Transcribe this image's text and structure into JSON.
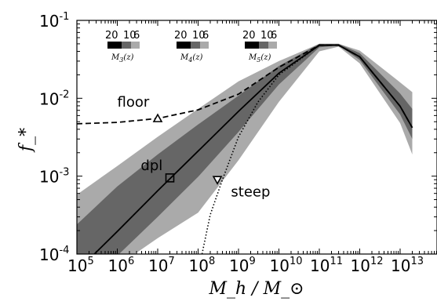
{
  "chart_data": {
    "type": "line",
    "title": "",
    "xlabel": "M_h / M_⊙",
    "ylabel": "f_*",
    "x_scale": "log",
    "y_scale": "log",
    "xlim": [
      100000,
      20000000000000
    ],
    "ylim": [
      0.0001,
      0.1
    ],
    "x_ticks": [
      {
        "mantissa": "10",
        "exp": "5",
        "value": 100000
      },
      {
        "mantissa": "10",
        "exp": "6",
        "value": 1000000
      },
      {
        "mantissa": "10",
        "exp": "7",
        "value": 10000000
      },
      {
        "mantissa": "10",
        "exp": "8",
        "value": 100000000
      },
      {
        "mantissa": "10",
        "exp": "9",
        "value": 1000000000
      },
      {
        "mantissa": "10",
        "exp": "10",
        "value": 10000000000
      },
      {
        "mantissa": "10",
        "exp": "11",
        "value": 100000000000
      },
      {
        "mantissa": "10",
        "exp": "12",
        "value": 1000000000000
      },
      {
        "mantissa": "10",
        "exp": "13",
        "value": 10000000000000
      }
    ],
    "y_ticks": [
      {
        "mantissa": "10",
        "exp": "-4",
        "value": 0.0001
      },
      {
        "mantissa": "10",
        "exp": "-3",
        "value": 0.001
      },
      {
        "mantissa": "10",
        "exp": "-2",
        "value": 0.01
      },
      {
        "mantissa": "10",
        "exp": "-1",
        "value": 0.1
      }
    ],
    "grid": false,
    "series": [
      {
        "name": "dpl",
        "style": "solid",
        "color": "#000000",
        "x": [
          100000,
          1000000,
          10000000,
          100000000,
          1000000000,
          10000000000,
          100000000000,
          300000000000,
          1000000000000,
          10000000000000,
          20000000000000
        ],
        "y": [
          6e-05,
          0.000195,
          0.00065,
          0.0021,
          0.0068,
          0.021,
          0.048,
          0.048,
          0.034,
          0.0079,
          0.0042
        ]
      },
      {
        "name": "floor",
        "style": "dashed",
        "color": "#000000",
        "x": [
          100000,
          1000000,
          10000000,
          100000000,
          1000000000,
          10000000000,
          100000000000,
          300000000000,
          1000000000000,
          10000000000000,
          20000000000000
        ],
        "y": [
          0.0047,
          0.0049,
          0.0055,
          0.0071,
          0.0113,
          0.025,
          0.048,
          0.048,
          0.034,
          0.0079,
          0.0042
        ]
      },
      {
        "name": "steep",
        "style": "dotted",
        "color": "#000000",
        "x": [
          125000000,
          200000000,
          400000000,
          1000000000,
          3000000000,
          10000000000,
          100000000000,
          300000000000,
          1000000000000,
          10000000000000,
          20000000000000
        ],
        "y": [
          0.0001,
          0.00032,
          0.0009,
          0.0032,
          0.0089,
          0.02,
          0.048,
          0.048,
          0.034,
          0.0079,
          0.0042
        ]
      }
    ],
    "bands": [
      {
        "level": "outer",
        "color": "#aaaaaa",
        "x": [
          100000,
          1000000,
          10000000,
          100000000,
          1000000000,
          10000000000,
          100000000000,
          300000000000,
          1000000000000,
          10000000000000,
          20000000000000
        ],
        "lower": [
          3e-05,
          7e-05,
          0.00016,
          0.00034,
          0.0016,
          0.009,
          0.04,
          0.046,
          0.028,
          0.0048,
          0.0019
        ],
        "upper": [
          0.00058,
          0.00135,
          0.0032,
          0.0073,
          0.0165,
          0.03,
          0.05,
          0.05,
          0.041,
          0.016,
          0.012
        ]
      },
      {
        "level": "inner",
        "color": "#666666",
        "x": [
          100000,
          1000000,
          10000000,
          100000000,
          1000000000,
          10000000000,
          100000000000,
          300000000000,
          1000000000000,
          10000000000000,
          20000000000000
        ],
        "lower": [
          3e-05,
          9.5e-05,
          0.0003,
          0.00098,
          0.0037,
          0.015,
          0.045,
          0.048,
          0.031,
          0.0062,
          0.003
        ],
        "upper": [
          0.00024,
          0.00074,
          0.0019,
          0.0046,
          0.0108,
          0.026,
          0.05,
          0.05,
          0.038,
          0.0115,
          0.0073
        ]
      }
    ],
    "markers": [
      {
        "series": "floor",
        "shape": "triangle-up",
        "x": 10000000,
        "y": 0.0055
      },
      {
        "series": "dpl",
        "shape": "square",
        "x": 20000000,
        "y": 0.00095
      },
      {
        "series": "steep",
        "shape": "triangle-down",
        "x": 300000000,
        "y": 0.0009
      }
    ],
    "annotations": [
      {
        "text": "floor",
        "x": 1000000,
        "y": 0.0078
      },
      {
        "text": "dpl",
        "x": 3800000,
        "y": 0.0012
      },
      {
        "text": "steep",
        "x": 650000000,
        "y": 0.00055
      }
    ],
    "colorbars": [
      {
        "labels": [
          "20",
          "10",
          "6"
        ],
        "caption": "M",
        "subscript": "3",
        "arg": "(z)",
        "colors": [
          "#000000",
          "#666666",
          "#aaaaaa"
        ]
      },
      {
        "labels": [
          "20",
          "10",
          "6"
        ],
        "caption": "M",
        "subscript": "4",
        "arg": "(z)",
        "colors": [
          "#000000",
          "#666666",
          "#aaaaaa"
        ]
      },
      {
        "labels": [
          "20",
          "10",
          "6"
        ],
        "caption": "M",
        "subscript": "5",
        "arg": "(z)",
        "colors": [
          "#000000",
          "#666666",
          "#aaaaaa"
        ]
      }
    ]
  }
}
